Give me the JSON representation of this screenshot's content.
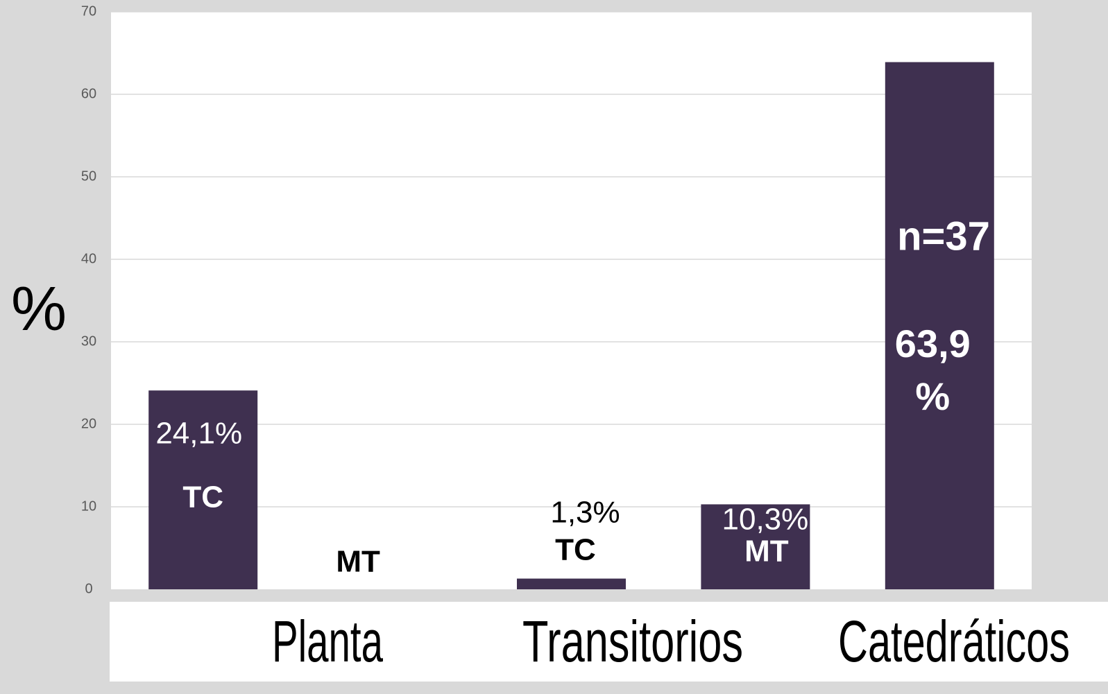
{
  "chart_data": {
    "type": "bar",
    "ylabel": "%",
    "groups": [
      "Planta",
      "Transitorios",
      "Catedráticos"
    ],
    "categories": [
      "TC",
      "MT",
      "TC",
      "MT",
      null
    ],
    "values": [
      24.1,
      0,
      1.3,
      10.3,
      63.9
    ],
    "value_labels": [
      "24,1%",
      null,
      "1,3%",
      "10,3%",
      "63,9 %"
    ],
    "annotation": "n=37",
    "color": "#3f3050",
    "ylim": [
      0,
      70
    ],
    "yticks": [
      0,
      10,
      20,
      30,
      40,
      50,
      60,
      70
    ],
    "grid": true
  }
}
